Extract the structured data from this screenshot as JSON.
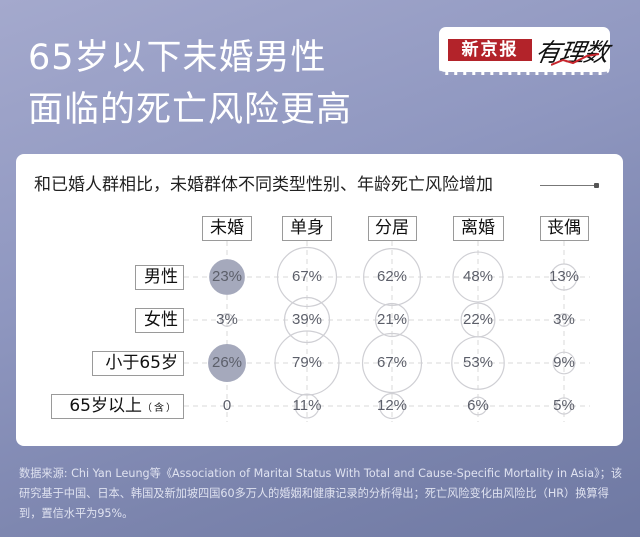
{
  "header": {
    "title_line1": "65岁以下未婚男性",
    "title_line2": "面临的死亡风险更高"
  },
  "logo": {
    "brand": "新京报",
    "column": "有理数",
    "brand_color": "#b3232a"
  },
  "card": {
    "subtitle": "和已婚人群相比，未婚群体不同类型性别、年龄死亡风险增加"
  },
  "colors": {
    "filled_bubble": "#a5a9bc",
    "outline_bubble": "#cfcfd4",
    "grid": "#d8d8d8",
    "bg_top": "#a4a9cd",
    "bg_bottom": "#6f79a3"
  },
  "chart_data": {
    "type": "bubble-matrix",
    "title": "和已婚人群相比，未婚群体不同类型性别、年龄死亡风险增加",
    "columns": [
      "未婚",
      "单身",
      "分居",
      "离婚",
      "丧偶"
    ],
    "rows": [
      "男性",
      "女性",
      "小于65岁",
      "65岁以上"
    ],
    "row_suffix": [
      "",
      "",
      "",
      "（含）"
    ],
    "values": [
      [
        23,
        67,
        62,
        48,
        13
      ],
      [
        3,
        39,
        21,
        22,
        3
      ],
      [
        26,
        79,
        67,
        53,
        9
      ],
      [
        0,
        11,
        12,
        6,
        5
      ]
    ],
    "labels": [
      [
        "23%",
        "67%",
        "62%",
        "48%",
        "13%"
      ],
      [
        "3%",
        "39%",
        "21%",
        "22%",
        "3%"
      ],
      [
        "26%",
        "79%",
        "67%",
        "53%",
        "9%"
      ],
      [
        "0",
        "11%",
        "12%",
        "6%",
        "5%"
      ]
    ],
    "highlighted_cells": [
      [
        0,
        0
      ],
      [
        2,
        0
      ]
    ],
    "unit": "%"
  },
  "footer": {
    "source": "数据来源: Chi Yan Leung等《Association of Marital Status With Total and Cause-Specific Mortality in Asia》；该研究基于中国、日本、韩国及新加坡四国60多万人的婚姻和健康记录的分析得出；死亡风险变化由风险比（HR）换算得到，置信水平为95%。"
  }
}
